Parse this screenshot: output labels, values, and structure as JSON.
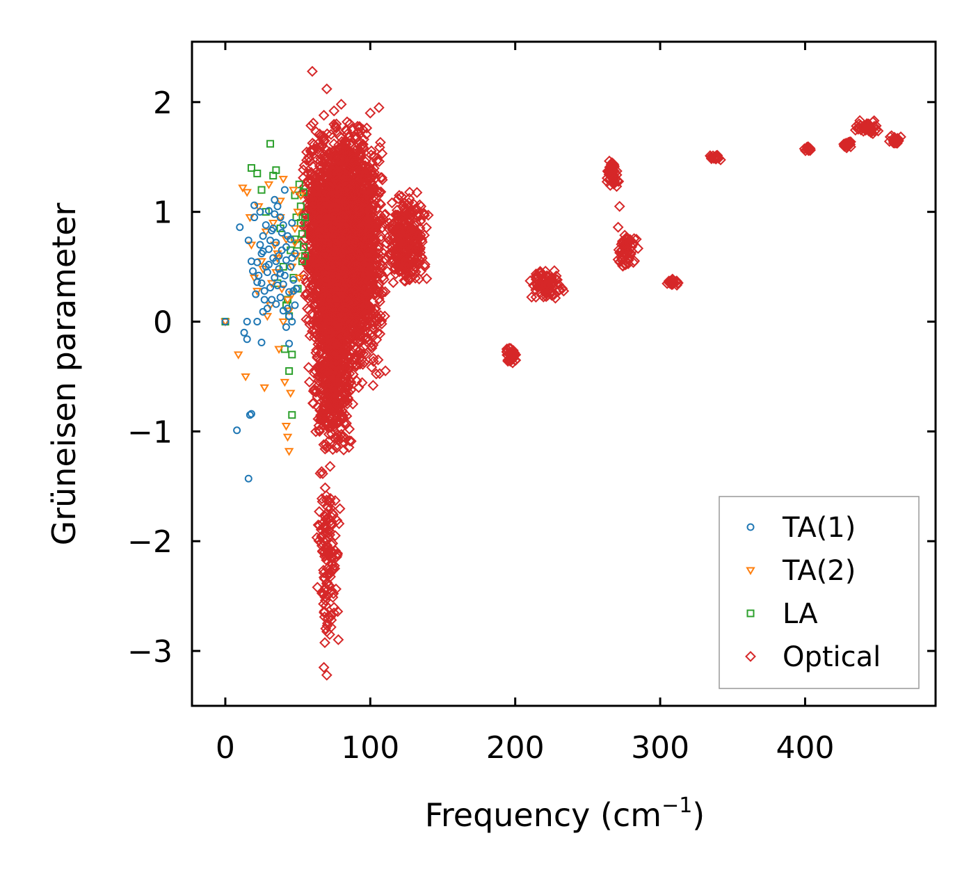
{
  "chart_data": {
    "type": "scatter",
    "title": "",
    "xlabel": "Frequency (cm",
    "xlabel_exponent": "−1",
    "xlabel_suffix": ")",
    "ylabel": "Grüneisen parameter",
    "xlim": [
      -23,
      490
    ],
    "ylim": [
      -3.5,
      2.55
    ],
    "x_ticks": [
      0,
      100,
      200,
      300,
      400
    ],
    "x_tick_labels": [
      "0",
      "100",
      "200",
      "300",
      "400"
    ],
    "y_ticks": [
      -3,
      -2,
      -1,
      0,
      1,
      2
    ],
    "y_tick_labels": [
      "−3",
      "−2",
      "−1",
      "0",
      "1",
      "2"
    ],
    "grid": false,
    "legend_position": "bottom-right",
    "series": [
      {
        "name": "TA(1)",
        "marker": "circle",
        "color": "#1f77b4",
        "x": [
          0,
          8,
          10,
          13,
          15,
          15,
          16,
          16,
          17,
          18,
          18,
          19,
          20,
          21,
          22,
          22,
          23,
          24,
          25,
          25,
          25,
          26,
          26,
          27,
          28,
          28,
          29,
          30,
          30,
          31,
          32,
          32,
          33,
          34,
          34,
          35,
          35,
          36,
          37,
          38,
          38,
          39,
          40,
          40,
          41,
          42,
          42,
          43,
          44,
          44,
          45,
          46,
          46,
          47,
          48,
          48,
          49,
          20,
          24,
          29,
          33,
          37,
          41,
          45,
          30,
          36,
          42,
          27,
          39,
          44,
          22,
          34,
          46,
          31,
          38,
          43,
          26,
          35,
          40,
          47
        ],
        "y": [
          0.0,
          -0.99,
          0.86,
          -0.1,
          0.0,
          -0.16,
          -1.43,
          0.74,
          -0.85,
          0.55,
          -0.84,
          0.46,
          1.06,
          0.25,
          0.0,
          0.54,
          0.42,
          1.0,
          -0.19,
          0.35,
          0.62,
          0.09,
          0.78,
          0.28,
          0.5,
          0.88,
          0.12,
          0.66,
          1.01,
          0.31,
          0.2,
          0.83,
          0.58,
          1.11,
          0.4,
          0.72,
          0.16,
          1.05,
          0.48,
          0.22,
          0.95,
          0.65,
          0.1,
          0.34,
          1.2,
          0.56,
          -0.05,
          0.78,
          0.27,
          -0.2,
          0.5,
          0.0,
          0.9,
          0.38,
          0.15,
          0.62,
          0.3,
          0.95,
          0.7,
          0.45,
          0.85,
          0.6,
          0.42,
          0.75,
          0.52,
          0.33,
          0.68,
          0.2,
          0.81,
          0.05,
          0.36,
          0.98,
          0.58,
          0.74,
          0.44,
          0.12,
          0.64,
          0.55,
          0.88,
          0.28
        ]
      },
      {
        "name": "TA(2)",
        "marker": "triangle",
        "color": "#ff7f0e",
        "x": [
          0,
          9,
          12,
          14,
          15,
          17,
          18,
          20,
          22,
          23,
          25,
          27,
          28,
          30,
          31,
          33,
          35,
          36,
          37,
          38,
          39,
          40,
          41,
          42,
          42,
          43,
          43,
          44,
          45,
          46,
          47,
          48,
          49,
          50,
          51,
          52,
          32,
          34,
          38,
          44,
          26,
          40,
          46,
          36,
          48,
          29
        ],
        "y": [
          0.0,
          -0.3,
          1.22,
          -0.5,
          1.18,
          0.95,
          0.7,
          0.4,
          0.28,
          1.05,
          0.55,
          -0.6,
          0.82,
          1.25,
          0.15,
          0.9,
          0.45,
          0.62,
          -0.25,
          1.1,
          0.3,
          0.0,
          -0.55,
          -0.95,
          0.75,
          -1.05,
          0.2,
          -1.18,
          -0.65,
          0.5,
          1.2,
          0.85,
          0.6,
          1.0,
          0.4,
          1.15,
          0.35,
          0.7,
          0.95,
          0.1,
          0.48,
          1.3,
          0.25,
          0.58,
          0.72,
          0.05
        ]
      },
      {
        "name": "LA",
        "marker": "square",
        "color": "#2ca02c",
        "x": [
          0,
          18,
          22,
          25,
          28,
          31,
          33,
          35,
          36,
          38,
          40,
          41,
          43,
          44,
          45,
          46,
          47,
          48,
          49,
          50,
          51,
          52,
          53,
          53,
          54,
          54,
          55,
          55,
          42,
          46,
          50,
          52,
          44,
          48
        ],
        "y": [
          0.0,
          1.4,
          1.35,
          1.2,
          1.0,
          1.62,
          1.33,
          1.38,
          0.35,
          0.85,
          0.5,
          -0.25,
          0.2,
          -0.45,
          0.65,
          -0.85,
          0.4,
          1.15,
          0.95,
          0.7,
          1.25,
          1.05,
          0.8,
          0.55,
          1.18,
          0.68,
          0.95,
          0.6,
          0.15,
          -0.3,
          0.3,
          0.9,
          0.05,
          0.75
        ]
      },
      {
        "name": "Optical",
        "marker": "diamond",
        "color": "#d62728",
        "clusters": [
          {
            "x": [
              52,
              110
            ],
            "y": [
              -0.3,
              1.85
            ],
            "count": 2200
          },
          {
            "x": [
              55,
              112
            ],
            "y": [
              -0.6,
              1.6
            ],
            "count": 900
          },
          {
            "x": [
              60,
              88
            ],
            "y": [
              -1.2,
              0.2
            ],
            "count": 500
          },
          {
            "x": [
              62,
              80
            ],
            "y": [
              -3.05,
              -1.2
            ],
            "count": 140
          },
          {
            "x": [
              110,
              140
            ],
            "y": [
              0.3,
              1.2
            ],
            "count": 300
          },
          {
            "x": [
              193,
              201
            ],
            "y": [
              -0.38,
              -0.22
            ],
            "count": 40
          },
          {
            "x": [
              210,
              234
            ],
            "y": [
              0.18,
              0.48
            ],
            "count": 80
          },
          {
            "x": [
              262,
              272
            ],
            "y": [
              1.22,
              1.48
            ],
            "count": 50
          },
          {
            "x": [
              270,
              285
            ],
            "y": [
              0.48,
              0.82
            ],
            "count": 60
          },
          {
            "x": [
              304,
              313
            ],
            "y": [
              0.33,
              0.39
            ],
            "count": 25
          },
          {
            "x": [
              334,
              342
            ],
            "y": [
              1.47,
              1.53
            ],
            "count": 20
          },
          {
            "x": [
              399,
              406
            ],
            "y": [
              1.55,
              1.6
            ],
            "count": 15
          },
          {
            "x": [
              425,
              433
            ],
            "y": [
              1.57,
              1.67
            ],
            "count": 20
          },
          {
            "x": [
              432,
              451
            ],
            "y": [
              1.7,
              1.85
            ],
            "count": 40
          },
          {
            "x": [
              458,
              467
            ],
            "y": [
              1.6,
              1.72
            ],
            "count": 25
          }
        ],
        "outliers": {
          "x": [
            60,
            68,
            70,
            75,
            80,
            84,
            95,
            100,
            106,
            92,
            88,
            65,
            272,
            271,
            120,
            135,
            140,
            58,
            105,
            110,
            70,
            68,
            72
          ],
          "y": [
            2.28,
            1.88,
            2.12,
            1.92,
            1.98,
            1.82,
            1.75,
            1.9,
            1.95,
            -0.6,
            -0.75,
            -1.0,
            1.05,
            0.86,
            1.15,
            1.05,
            0.97,
            -0.55,
            -0.1,
            0.05,
            -3.22,
            -3.15,
            -2.85
          ]
        }
      }
    ]
  }
}
